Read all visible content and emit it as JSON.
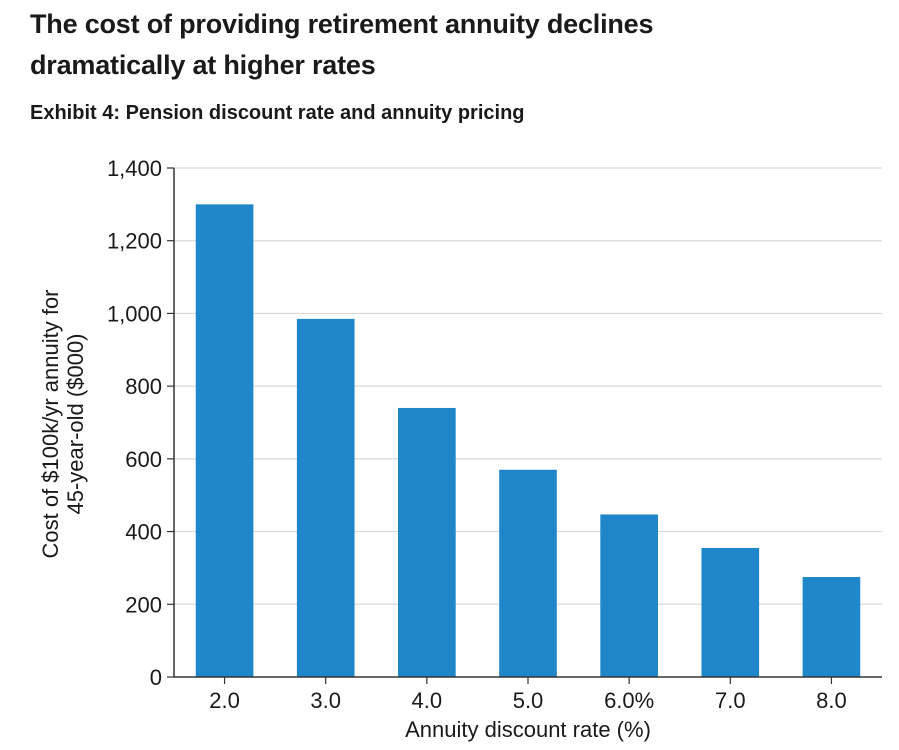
{
  "title_line1": "The cost of providing retirement annuity declines",
  "title_line2": "dramatically at higher rates",
  "subtitle": "Exhibit 4: Pension discount rate and annuity pricing",
  "bar_color": "#1f87c9",
  "chart_data": {
    "type": "bar",
    "categories": [
      "2.0",
      "3.0",
      "4.0",
      "5.0",
      "6.0%",
      "7.0",
      "8.0"
    ],
    "values": [
      1300,
      985,
      740,
      570,
      447,
      355,
      275
    ],
    "xlabel": "Annuity discount rate (%)",
    "ylabel_line1": "Cost of $100k/yr annuity for",
    "ylabel_line2": "45-year-old ($000)",
    "ylim": [
      0,
      1400
    ],
    "yticks": [
      "0",
      "200",
      "400",
      "600",
      "800",
      "1,000",
      "1,200",
      "1,400"
    ],
    "grid": true
  }
}
